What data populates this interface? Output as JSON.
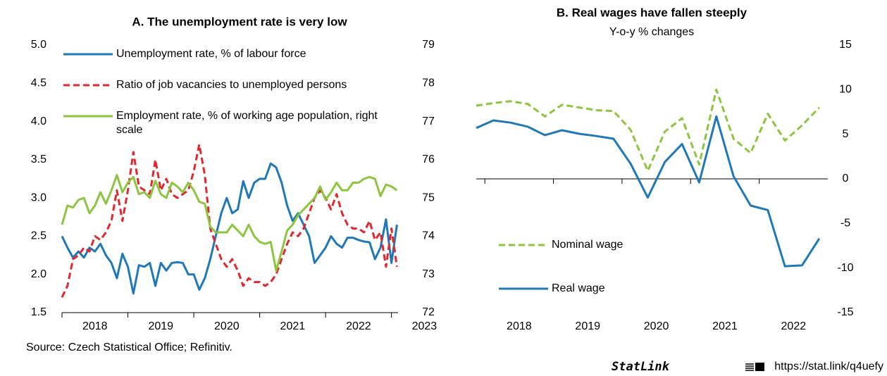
{
  "chart_data": [
    {
      "type": "line",
      "title": "A. The unemployment rate is very low",
      "x": [
        2018,
        2018.083,
        2018.167,
        2018.25,
        2018.333,
        2018.417,
        2018.5,
        2018.583,
        2018.667,
        2018.75,
        2018.833,
        2018.917,
        2019,
        2019.083,
        2019.167,
        2019.25,
        2019.333,
        2019.417,
        2019.5,
        2019.583,
        2019.667,
        2019.75,
        2019.833,
        2019.917,
        2020,
        2020.083,
        2020.167,
        2020.25,
        2020.333,
        2020.417,
        2020.5,
        2020.583,
        2020.667,
        2020.75,
        2020.833,
        2020.917,
        2021,
        2021.083,
        2021.167,
        2021.25,
        2021.333,
        2021.417,
        2021.5,
        2021.583,
        2021.667,
        2021.75,
        2021.833,
        2021.917,
        2022,
        2022.083,
        2022.167,
        2022.25,
        2022.333,
        2022.417,
        2022.5,
        2022.583,
        2022.667,
        2022.75,
        2022.833,
        2022.917,
        2023,
        2023.083
      ],
      "series": [
        {
          "name": "Unemployment rate, % of labour force",
          "color": "#1f78b9",
          "style": "solid",
          "axis": "y",
          "values": [
            2.5,
            2.35,
            2.22,
            2.3,
            2.22,
            2.35,
            2.3,
            2.4,
            2.25,
            2.15,
            1.95,
            2.27,
            2.1,
            1.75,
            2.12,
            2.1,
            2.15,
            1.85,
            2.15,
            2.05,
            2.15,
            2.16,
            2.15,
            2.0,
            2.0,
            1.8,
            1.95,
            2.2,
            2.5,
            2.8,
            3.0,
            2.8,
            2.85,
            3.22,
            3.0,
            3.2,
            3.25,
            3.25,
            3.45,
            3.4,
            3.2,
            2.9,
            2.7,
            2.8,
            2.65,
            2.5,
            2.15,
            2.25,
            2.35,
            2.5,
            2.4,
            2.35,
            2.48,
            2.48,
            2.45,
            2.43,
            2.42,
            2.2,
            2.35,
            2.72,
            2.15,
            2.65
          ]
        },
        {
          "name": "Ratio of job vacancies to unemployed persons",
          "color": "#e0282e",
          "style": "dashed",
          "axis": "y",
          "values": [
            1.7,
            1.85,
            2.2,
            2.25,
            2.35,
            2.3,
            2.5,
            2.45,
            2.55,
            2.7,
            3.1,
            2.7,
            3.1,
            3.6,
            3.15,
            3.1,
            3.05,
            3.5,
            3.1,
            3.25,
            3.05,
            3.0,
            3.05,
            3.1,
            3.35,
            3.7,
            3.3,
            2.6,
            2.4,
            2.2,
            2.1,
            2.2,
            2.05,
            1.85,
            1.95,
            1.9,
            1.9,
            1.85,
            1.9,
            2.0,
            2.2,
            2.4,
            2.55,
            2.5,
            2.6,
            2.8,
            3.0,
            3.1,
            3.0,
            2.85,
            3.05,
            2.8,
            2.65,
            2.6,
            2.6,
            2.55,
            2.7,
            2.45,
            2.55,
            2.1,
            2.6,
            2.1
          ]
        },
        {
          "name": "Employment rate, % of working age population, right scale",
          "color": "#8cc63f",
          "style": "solid",
          "axis": "y2",
          "values": [
            74.3,
            74.8,
            74.75,
            74.95,
            75.0,
            74.6,
            74.8,
            75.15,
            74.85,
            75.2,
            75.6,
            75.15,
            75.4,
            75.55,
            75.1,
            75.15,
            75.0,
            75.45,
            75.1,
            75.0,
            75.4,
            75.3,
            75.15,
            75.4,
            75.2,
            74.9,
            74.85,
            74.25,
            74.1,
            74.1,
            74.1,
            74.3,
            74.15,
            74.0,
            74.3,
            74.0,
            73.85,
            73.8,
            73.85,
            73.1,
            73.6,
            74.15,
            74.3,
            74.55,
            74.7,
            74.85,
            75.0,
            75.3,
            74.95,
            75.15,
            75.4,
            75.2,
            75.2,
            75.4,
            75.4,
            75.5,
            75.55,
            75.5,
            75.05,
            75.35,
            75.3,
            75.2
          ]
        }
      ],
      "xlim": [
        2018,
        2023.1
      ],
      "xticks": [
        2018,
        2019,
        2020,
        2021,
        2022,
        2023
      ],
      "ylim": [
        1.5,
        5.0
      ],
      "yticks": [
        {
          "value": 5.0,
          "label": "5.0"
        },
        4.5,
        {
          "value": 4.0,
          "label": "4.0"
        },
        3.5,
        {
          "value": 3.0,
          "label": "3.0"
        },
        2.5,
        {
          "value": 2.0,
          "label": "2.0"
        },
        1.5
      ],
      "y2lim": [
        72,
        79
      ],
      "y2ticks": [
        72,
        73,
        74,
        75,
        76,
        77,
        78,
        79
      ],
      "legend": "upper left",
      "grid": false
    },
    {
      "type": "line",
      "title": "B. Real wages have fallen steeply",
      "subtitle": "Y-o-y % changes",
      "x": [
        2017.875,
        2018.125,
        2018.375,
        2018.625,
        2018.875,
        2019.125,
        2019.375,
        2019.625,
        2019.875,
        2020.125,
        2020.375,
        2020.625,
        2020.875,
        2021.125,
        2021.375,
        2021.625,
        2021.875,
        2022.125,
        2022.375,
        2022.625,
        2022.875
      ],
      "series": [
        {
          "name": "Nominal wage",
          "color": "#8cc63f",
          "style": "dashed",
          "axis": "y2",
          "values": [
            8.2,
            8.5,
            8.7,
            8.4,
            7.0,
            8.3,
            8.0,
            7.7,
            7.6,
            5.5,
            0.9,
            5.3,
            6.8,
            1.6,
            10.0,
            4.5,
            2.9,
            7.3,
            4.3,
            6.0,
            8.0
          ]
        },
        {
          "name": "Real wage",
          "color": "#1f78b9",
          "style": "solid",
          "axis": "y2",
          "values": [
            5.7,
            6.55,
            6.3,
            5.85,
            4.9,
            5.45,
            5.05,
            4.8,
            4.5,
            1.7,
            -2.1,
            1.9,
            3.9,
            -0.4,
            7.0,
            0.3,
            -3.0,
            -3.5,
            -9.8,
            -9.7,
            -6.7
          ]
        }
      ],
      "xlim": [
        2017.875,
        2023.0
      ],
      "xticks": [
        2018,
        2019,
        2020,
        2021,
        2022
      ],
      "y2lim": [
        -15,
        15
      ],
      "y2ticks": [
        -15,
        -10,
        -5,
        0,
        5,
        10,
        15
      ],
      "legend": "lower left",
      "grid": false
    }
  ],
  "footer": {
    "source": "Source: Czech Statistical Office; Refinitiv.",
    "statlink": "StatLink",
    "url": "https://stat.link/q4uefy"
  }
}
